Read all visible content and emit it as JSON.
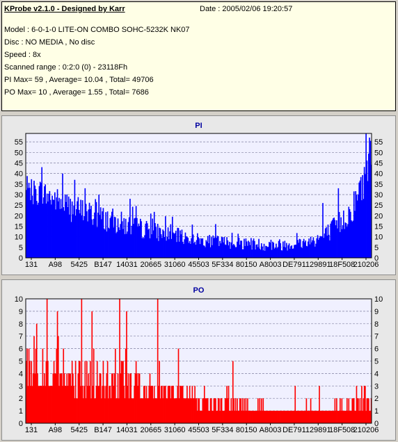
{
  "header": {
    "app_title": "KProbe v2.1.0 - Designed by Karr",
    "date": "Date : 2005/02/06 19:20:57",
    "lines": [
      "Model : 6-0-1-0 LITE-ON COMBO SOHC-5232K NK07",
      "Disc : NO MEDIA , No disc",
      "Speed : 8x",
      "Scanned range : 0:2:0 (0) - 23118Fh",
      "PI Max= 59 , Average= 10.04 , Total= 49706",
      "PO Max= 10 , Average= 1.55 , Total= 7686"
    ]
  },
  "chart_data": [
    {
      "type": "bar",
      "title": "PI",
      "color": "#0000ff",
      "xlabel": "",
      "ylabel": "",
      "ylim": [
        0,
        59
      ],
      "yticks": [
        0,
        5,
        10,
        15,
        20,
        25,
        30,
        35,
        40,
        45,
        50,
        55
      ],
      "xtick_labels": [
        "131",
        "A98",
        "5425",
        "B147",
        "14031",
        "20665",
        "31060",
        "45503",
        "5F334",
        "80150",
        "A8003",
        "DE791",
        "129891",
        "18F508",
        "210206"
      ],
      "grid": true,
      "legend": "none",
      "profile": [
        {
          "x": 0.0,
          "base": 31,
          "spread": 6
        },
        {
          "x": 0.04,
          "base": 31,
          "spread": 7
        },
        {
          "x": 0.08,
          "base": 28,
          "spread": 6
        },
        {
          "x": 0.13,
          "base": 24,
          "spread": 7
        },
        {
          "x": 0.2,
          "base": 20,
          "spread": 6
        },
        {
          "x": 0.26,
          "base": 17,
          "spread": 6
        },
        {
          "x": 0.33,
          "base": 14,
          "spread": 5
        },
        {
          "x": 0.42,
          "base": 11,
          "spread": 4
        },
        {
          "x": 0.52,
          "base": 8,
          "spread": 3
        },
        {
          "x": 0.62,
          "base": 7,
          "spread": 3
        },
        {
          "x": 0.72,
          "base": 6,
          "spread": 3
        },
        {
          "x": 0.8,
          "base": 7,
          "spread": 3
        },
        {
          "x": 0.86,
          "base": 10,
          "spread": 4
        },
        {
          "x": 0.9,
          "base": 15,
          "spread": 6
        },
        {
          "x": 0.94,
          "base": 22,
          "spread": 7
        },
        {
          "x": 0.97,
          "base": 32,
          "spread": 9
        },
        {
          "x": 1.0,
          "base": 50,
          "spread": 9
        }
      ],
      "peaks": [
        {
          "x": 0.045,
          "value": 43
        },
        {
          "x": 0.105,
          "value": 40
        },
        {
          "x": 0.14,
          "value": 37
        },
        {
          "x": 0.17,
          "value": 33
        },
        {
          "x": 0.21,
          "value": 30
        },
        {
          "x": 0.3,
          "value": 28
        },
        {
          "x": 0.36,
          "value": 21
        },
        {
          "x": 0.55,
          "value": 16
        },
        {
          "x": 0.86,
          "value": 26
        },
        {
          "x": 0.905,
          "value": 33
        },
        {
          "x": 0.985,
          "value": 59
        },
        {
          "x": 0.995,
          "value": 57
        }
      ],
      "samples": 400
    },
    {
      "type": "bar",
      "title": "PO",
      "color": "#ff0000",
      "xlabel": "",
      "ylabel": "",
      "ylim": [
        0,
        10
      ],
      "yticks": [
        0,
        1,
        2,
        3,
        4,
        5,
        6,
        7,
        8,
        9,
        10
      ],
      "xtick_labels": [
        "131",
        "A98",
        "5425",
        "B147",
        "14031",
        "20665",
        "31060",
        "45503",
        "5F334",
        "80150",
        "A8003",
        "DE791",
        "129891",
        "18F508",
        "210206"
      ],
      "grid": true,
      "legend": "none",
      "profile": [
        {
          "x": 0.0,
          "base": 4,
          "spread": 2
        },
        {
          "x": 0.1,
          "base": 4,
          "spread": 2
        },
        {
          "x": 0.2,
          "base": 3.5,
          "spread": 2
        },
        {
          "x": 0.3,
          "base": 3,
          "spread": 1.5
        },
        {
          "x": 0.4,
          "base": 2.5,
          "spread": 1
        },
        {
          "x": 0.5,
          "base": 2,
          "spread": 0.8
        },
        {
          "x": 0.6,
          "base": 1.5,
          "spread": 0.6
        },
        {
          "x": 0.7,
          "base": 1,
          "spread": 0.5
        },
        {
          "x": 0.85,
          "base": 1,
          "spread": 0.4
        },
        {
          "x": 1.0,
          "base": 1.5,
          "spread": 0.8
        }
      ],
      "peaks": [
        {
          "x": 0.03,
          "value": 8
        },
        {
          "x": 0.06,
          "value": 10
        },
        {
          "x": 0.09,
          "value": 9
        },
        {
          "x": 0.16,
          "value": 10
        },
        {
          "x": 0.19,
          "value": 9
        },
        {
          "x": 0.27,
          "value": 10
        },
        {
          "x": 0.29,
          "value": 9
        },
        {
          "x": 0.38,
          "value": 10
        },
        {
          "x": 0.44,
          "value": 6
        },
        {
          "x": 0.6,
          "value": 5
        },
        {
          "x": 0.78,
          "value": 3
        },
        {
          "x": 0.85,
          "value": 3
        },
        {
          "x": 0.98,
          "value": 3
        }
      ],
      "samples": 400
    }
  ]
}
